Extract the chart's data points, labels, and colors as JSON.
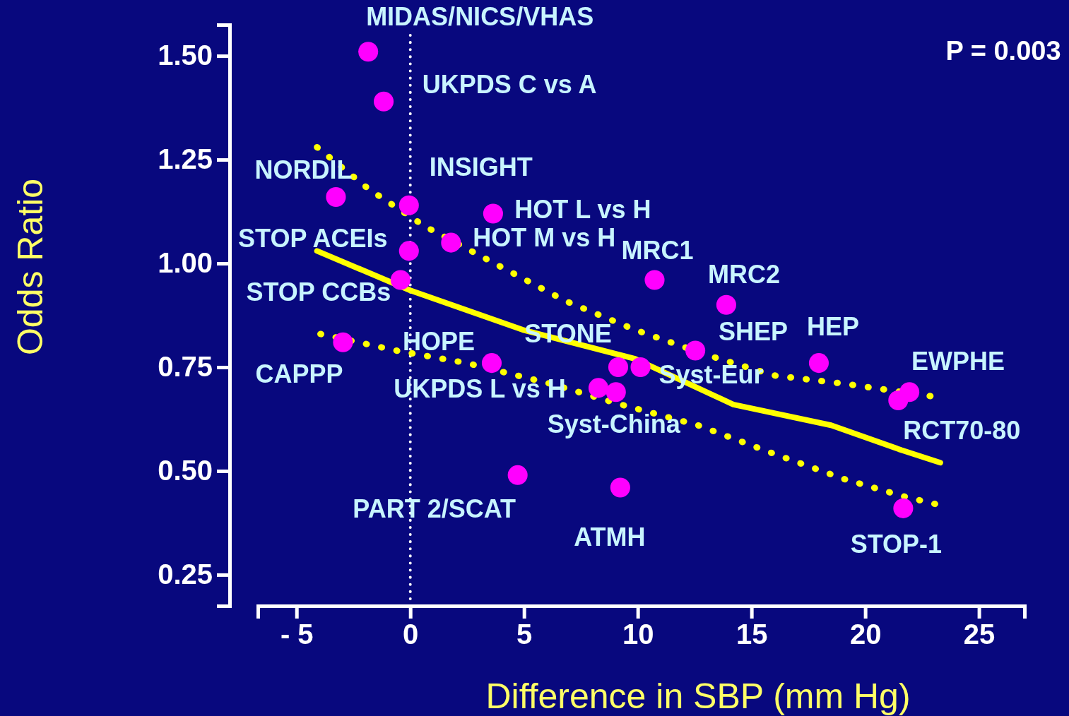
{
  "chart_data": {
    "type": "scatter",
    "xlabel": "Difference in SBP (mm Hg)",
    "ylabel": "Odds Ratio",
    "xlim": [
      -6.7,
      27
    ],
    "ylim": [
      0.175,
      1.575
    ],
    "xticks": [
      {
        "value": -5,
        "label": "- 5"
      },
      0,
      5,
      10,
      15,
      20,
      25
    ],
    "yticks": [
      {
        "value": 0.25,
        "label": "0.25"
      },
      {
        "value": 0.5,
        "label": "0.50"
      },
      {
        "value": 0.75,
        "label": "0.75"
      },
      {
        "value": 1,
        "label": "1.00"
      },
      {
        "value": 1.25,
        "label": "1.25"
      },
      {
        "value": 1.5,
        "label": "1.50"
      }
    ],
    "marker": "circle",
    "series": [
      {
        "color": "#ff00ff",
        "x": [
          -1.85,
          -1.17,
          -3.27,
          -0.06,
          3.64,
          -0.06,
          1.79,
          -0.43,
          10.74,
          13.89,
          -2.96,
          3.58,
          9.14,
          10.12,
          12.53,
          17.96,
          8.27,
          9.04,
          21.94,
          21.45,
          4.72,
          9.23,
          21.67
        ],
        "values": [
          1.51,
          1.39,
          1.16,
          1.14,
          1.12,
          1.03,
          1.05,
          0.96,
          0.96,
          0.9,
          0.81,
          0.76,
          0.75,
          0.75,
          0.79,
          0.76,
          0.7,
          0.69,
          0.69,
          0.67,
          0.49,
          0.46,
          0.41
        ]
      },
      {
        "type": "line",
        "color": "#ffff00",
        "line_style": "solid",
        "marker": "none",
        "x": [
          -4.1,
          0,
          4.94,
          9.88,
          14.2,
          18.5,
          21.6,
          23.3
        ],
        "values": [
          1.03,
          0.935,
          0.84,
          0.77,
          0.66,
          0.61,
          0.55,
          0.52
        ]
      },
      {
        "type": "line",
        "color": "#ffff00",
        "line_style": "dotted",
        "marker": "none",
        "x": [
          -4.1,
          -1.85,
          0.62,
          3.7,
          6.8,
          9.88,
          13,
          16,
          19.1,
          22.9
        ],
        "values": [
          1.28,
          1.18,
          1.09,
          1.0,
          0.91,
          0.84,
          0.78,
          0.73,
          0.71,
          0.68
        ]
      },
      {
        "type": "line",
        "color": "#ffff00",
        "line_style": "dotted",
        "marker": "none",
        "x": [
          -3.95,
          -0.62,
          2.47,
          6.17,
          9.26,
          12.65,
          16.05,
          19.1,
          21.6,
          23.1
        ],
        "values": [
          0.83,
          0.79,
          0.76,
          0.71,
          0.66,
          0.61,
          0.54,
          0.48,
          0.44,
          0.42
        ]
      }
    ],
    "ref_lines": [
      {
        "axis": "x",
        "value": 0,
        "color": "#ffffff",
        "line_style": "dotted"
      }
    ],
    "annotations": [
      "P = 0.003",
      {
        "text": "MIDAS/NICS/VHAS",
        "x": -1.85,
        "y": 1.51
      },
      {
        "text": "UKPDS C vs A",
        "x": -1.17,
        "y": 1.39
      },
      {
        "text": "NORDIL",
        "x": -3.27,
        "y": 1.16
      },
      {
        "text": "INSIGHT",
        "x": -0.06,
        "y": 1.14
      },
      {
        "text": "HOT L vs H",
        "x": 3.64,
        "y": 1.12
      },
      {
        "text": "STOP ACEIs",
        "x": -0.06,
        "y": 1.03
      },
      {
        "text": "HOT M vs H",
        "x": 1.79,
        "y": 1.05
      },
      {
        "text": "MRC1",
        "x": 10.74,
        "y": 0.96
      },
      {
        "text": "MRC2",
        "x": 13.89,
        "y": 0.9
      },
      {
        "text": "STOP CCBs",
        "x": -0.43,
        "y": 0.96
      },
      {
        "text": "STONE",
        "x": 9.14,
        "y": 0.75
      },
      {
        "text": "SHEP",
        "x": 12.53,
        "y": 0.79
      },
      {
        "text": "HEP",
        "x": 17.96,
        "y": 0.76
      },
      {
        "text": "HOPE",
        "x": 3.58,
        "y": 0.76
      },
      {
        "text": "EWPHE",
        "x": 21.94,
        "y": 0.69
      },
      {
        "text": "CAPPP",
        "x": -2.96,
        "y": 0.81
      },
      {
        "text": "Syst-Eur",
        "x": 10.12,
        "y": 0.75
      },
      {
        "text": "UKPDS L vs H",
        "x": 8.27,
        "y": 0.7
      },
      {
        "text": "Syst-China",
        "x": 9.04,
        "y": 0.69
      },
      {
        "text": "RCT70-80",
        "x": 21.45,
        "y": 0.67
      },
      {
        "text": "PART 2/SCAT",
        "x": 4.72,
        "y": 0.49
      },
      {
        "text": "ATMH",
        "x": 9.23,
        "y": 0.46
      },
      {
        "text": "STOP-1",
        "x": 21.67,
        "y": 0.41
      }
    ]
  }
}
